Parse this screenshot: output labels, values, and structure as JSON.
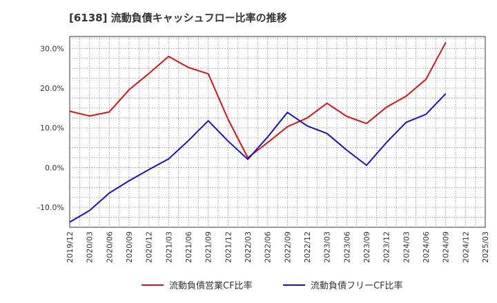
{
  "chart_data": {
    "type": "line",
    "title": "[6138]  流動負債キャッシュフロー比率の推移",
    "xlabel": "",
    "ylabel": "",
    "categories": [
      "2019/12",
      "2020/03",
      "2020/06",
      "2020/09",
      "2020/12",
      "2021/03",
      "2021/06",
      "2021/09",
      "2021/12",
      "2022/03",
      "2022/06",
      "2022/09",
      "2022/12",
      "2023/03",
      "2023/06",
      "2023/09",
      "2023/12",
      "2024/03",
      "2024/06",
      "2024/09",
      "2024/12",
      "2025/03"
    ],
    "yticks": [
      -10,
      0,
      10,
      20,
      30
    ],
    "ytick_labels": [
      "-10.0%",
      "0.0%",
      "10.0%",
      "20.0%",
      "30.0%"
    ],
    "ylim": [
      -15,
      33
    ],
    "grid": true,
    "legend_position": "bottom",
    "series": [
      {
        "name": "流動負債営業CF比率",
        "color": "#dd1111",
        "values": [
          14.2,
          13.0,
          14.0,
          19.6,
          23.7,
          28.0,
          25.2,
          23.6,
          12.2,
          2.5,
          6.3,
          10.3,
          12.5,
          16.2,
          12.9,
          11.1,
          15.2,
          18.0,
          22.2,
          31.5,
          null,
          null
        ]
      },
      {
        "name": "流動負債フリーCF比率",
        "color": "#1111cc",
        "values": [
          -13.7,
          -10.8,
          -6.4,
          -3.3,
          -0.5,
          2.2,
          6.8,
          11.8,
          6.7,
          2.1,
          7.7,
          13.9,
          10.5,
          8.6,
          4.4,
          0.6,
          6.3,
          11.4,
          13.4,
          18.6,
          null,
          null
        ]
      }
    ]
  }
}
